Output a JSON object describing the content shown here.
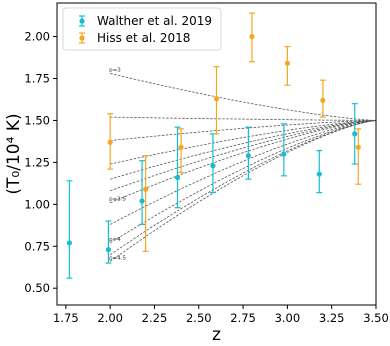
{
  "chart_data": {
    "type": "scatter",
    "xlabel": "z",
    "ylabel": "(T₀/10⁴ K)",
    "xlim": [
      1.7,
      3.5
    ],
    "ylim": [
      0.4,
      2.2
    ],
    "xticks": [
      1.75,
      2.0,
      2.25,
      2.5,
      2.75,
      3.0,
      3.25,
      3.5
    ],
    "xtick_labels": [
      "1.75",
      "2.00",
      "2.25",
      "2.50",
      "2.75",
      "3.00",
      "3.25",
      "3.50"
    ],
    "yticks": [
      0.5,
      0.75,
      1.0,
      1.25,
      1.5,
      1.75,
      2.0
    ],
    "ytick_labels": [
      "0.50",
      "0.75",
      "1.00",
      "1.25",
      "1.50",
      "1.75",
      "2.00"
    ],
    "legend_position": "top-left",
    "series": [
      {
        "name": "Walther et al. 2019",
        "color": "#17becf",
        "points": [
          {
            "x": 1.77,
            "y": 0.77,
            "lo": 0.56,
            "hi": 1.14
          },
          {
            "x": 1.99,
            "y": 0.73,
            "lo": 0.65,
            "hi": 0.9
          },
          {
            "x": 2.18,
            "y": 1.02,
            "lo": 0.88,
            "hi": 1.26
          },
          {
            "x": 2.38,
            "y": 1.16,
            "lo": 0.98,
            "hi": 1.46
          },
          {
            "x": 2.58,
            "y": 1.23,
            "lo": 1.07,
            "hi": 1.42
          },
          {
            "x": 2.78,
            "y": 1.29,
            "lo": 1.15,
            "hi": 1.46
          },
          {
            "x": 2.98,
            "y": 1.3,
            "lo": 1.17,
            "hi": 1.48
          },
          {
            "x": 3.18,
            "y": 1.18,
            "lo": 1.07,
            "hi": 1.32
          },
          {
            "x": 3.38,
            "y": 1.42,
            "lo": 1.24,
            "hi": 1.6
          }
        ]
      },
      {
        "name": "Hiss et al. 2018",
        "color": "#f5a623",
        "points": [
          {
            "x": 2.0,
            "y": 1.37,
            "lo": 1.21,
            "hi": 1.54
          },
          {
            "x": 2.2,
            "y": 1.09,
            "lo": 0.72,
            "hi": 1.29
          },
          {
            "x": 2.4,
            "y": 1.34,
            "lo": 1.19,
            "hi": 1.45
          },
          {
            "x": 2.6,
            "y": 1.63,
            "lo": 1.42,
            "hi": 1.82
          },
          {
            "x": 2.8,
            "y": 2.0,
            "lo": 1.85,
            "hi": 2.14
          },
          {
            "x": 3.0,
            "y": 1.84,
            "lo": 1.71,
            "hi": 1.94
          },
          {
            "x": 3.2,
            "y": 1.62,
            "lo": 1.52,
            "hi": 1.74
          },
          {
            "x": 3.4,
            "y": 1.34,
            "lo": 1.12,
            "hi": 1.45
          }
        ]
      }
    ],
    "model_curves": [
      {
        "label": "p=3",
        "y_at_2": 1.78
      },
      {
        "label": "",
        "y_at_2": 1.52
      },
      {
        "label": "",
        "y_at_2": 1.38
      },
      {
        "label": "",
        "y_at_2": 1.24
      },
      {
        "label": "",
        "y_at_2": 1.15
      },
      {
        "label": "",
        "y_at_2": 1.08
      },
      {
        "label": "p=3.5",
        "y_at_2": 1.01
      },
      {
        "label": "",
        "y_at_2": 0.88
      },
      {
        "label": "p=4",
        "y_at_2": 0.77
      },
      {
        "label": "",
        "y_at_2": 0.7
      },
      {
        "label": "p=4.5",
        "y_at_2": 0.66
      }
    ],
    "model_pivot": {
      "x": 3.5,
      "y": 1.5
    }
  }
}
